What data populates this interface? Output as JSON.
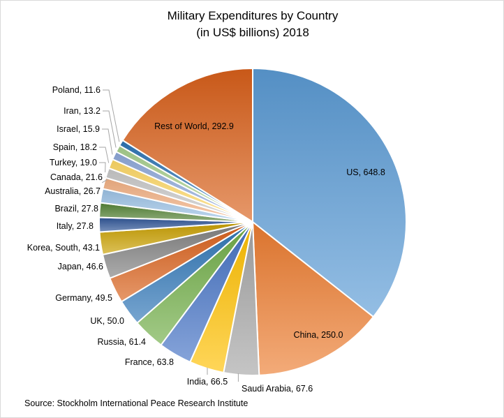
{
  "chart_data": {
    "type": "pie",
    "title_line1": "Military Expenditures by Country",
    "title_line2": "(in US$ billions) 2018",
    "source": "Source: Stockholm International Peace Research Institute",
    "start_angle": "12 o'clock, clockwise",
    "legend": "none (data labels)",
    "slices": [
      {
        "label": "US",
        "value": 648.8,
        "color": "#5B9BD5"
      },
      {
        "label": "China",
        "value": 250.0,
        "color": "#ED7D31"
      },
      {
        "label": "Saudi Arabia",
        "value": 67.6,
        "color": "#A5A5A5"
      },
      {
        "label": "India",
        "value": 66.5,
        "color": "#FFC000"
      },
      {
        "label": "France",
        "value": 63.8,
        "color": "#4472C4"
      },
      {
        "label": "Russia",
        "value": 61.4,
        "color": "#70AD47"
      },
      {
        "label": "UK",
        "value": 50.0,
        "color": "#2E75B6"
      },
      {
        "label": "Germany",
        "value": 49.5,
        "color": "#D9601A"
      },
      {
        "label": "Japan",
        "value": 46.6,
        "color": "#7F7F7F"
      },
      {
        "label": "Korea, South",
        "value": 43.1,
        "color": "#C9A000"
      },
      {
        "label": "Italy",
        "value": 27.8,
        "color": "#2F5597"
      },
      {
        "label": "Brazil",
        "value": 27.8,
        "color": "#548235"
      },
      {
        "label": "Australia",
        "value": 26.7,
        "color": "#9DC3E6"
      },
      {
        "label": "Canada",
        "value": 21.6,
        "color": "#F4B183"
      },
      {
        "label": "Turkey",
        "value": 19.0,
        "color": "#C9C9C9"
      },
      {
        "label": "Spain",
        "value": 18.2,
        "color": "#FFD966"
      },
      {
        "label": "Israel",
        "value": 15.9,
        "color": "#8FAADC"
      },
      {
        "label": "Iran",
        "value": 13.2,
        "color": "#A9D18E"
      },
      {
        "label": "Poland",
        "value": 11.6,
        "color": "#2E75B6"
      },
      {
        "label": "Rest of World",
        "value": 292.9,
        "color": "#D9601A"
      }
    ]
  }
}
